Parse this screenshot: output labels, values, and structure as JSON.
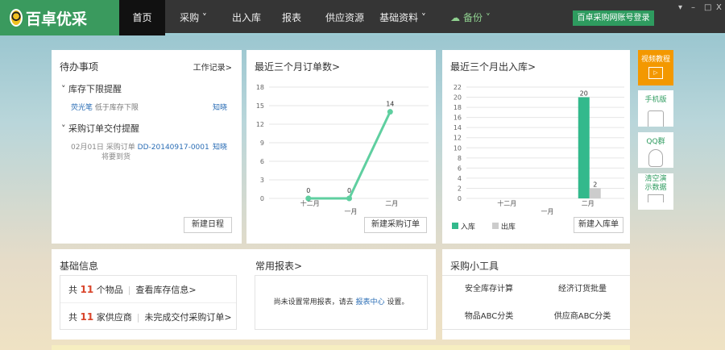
{
  "topbar": {
    "logo": "百卓优采",
    "nav": [
      {
        "label": "首页",
        "active": true
      },
      {
        "label": "采购 ˅"
      },
      {
        "label": "出入库"
      },
      {
        "label": "报表"
      },
      {
        "label": "供应资源"
      },
      {
        "label": "基础资料 ˅"
      }
    ],
    "backup": "备份 ˅",
    "login_button": "百卓采购网账号登录",
    "window_controls": [
      "▾",
      "–",
      "□",
      "X"
    ]
  },
  "todo": {
    "title": "待办事项",
    "work_log": "工作记录>",
    "sections": [
      {
        "title": "库存下限提醒",
        "item_link": "荧光笔",
        "item_text": "低于库存下限",
        "action": "知晓"
      },
      {
        "title": "采购订单交付提醒",
        "date": "02月01日",
        "item_text": "采购订单",
        "item_link": "DD-20140917-0001",
        "note": "将要到货",
        "action": "知晓"
      }
    ],
    "button": "新建日程"
  },
  "orders": {
    "title": "最近三个月订单数>",
    "button": "新建采购订单"
  },
  "stock": {
    "title": "最近三个月出入库>",
    "button": "新建入库单",
    "legend": [
      "入库",
      "出库"
    ]
  },
  "chart_data": [
    {
      "type": "line",
      "categories": [
        "十二月",
        "一月",
        "二月"
      ],
      "series": [
        {
          "values": [
            0,
            0,
            14
          ]
        }
      ],
      "ylim": [
        0,
        18
      ],
      "yticks": [
        0,
        3,
        6,
        9,
        12,
        15,
        18
      ],
      "grid": true,
      "color": "#5fcfa0"
    },
    {
      "type": "bar",
      "categories": [
        "十二月",
        "一月",
        "二月"
      ],
      "series": [
        {
          "name": "入库",
          "values": [
            0,
            0,
            20
          ],
          "color": "#33b98c"
        },
        {
          "name": "出库",
          "values": [
            0,
            0,
            2
          ],
          "color": "#cccccc"
        }
      ],
      "ylim": [
        0,
        22
      ],
      "yticks": [
        0,
        2,
        4,
        6,
        8,
        10,
        12,
        14,
        16,
        18,
        20,
        22
      ],
      "grid": true,
      "legend": "bottom-left"
    }
  ],
  "side": [
    {
      "label": "视频教程",
      "icon": "video-icon"
    },
    {
      "label": "手机版",
      "icon": "phone-icon"
    },
    {
      "label": "QQ群",
      "icon": "qq-icon"
    },
    {
      "label": "清空演示数据",
      "icon": "broom-icon"
    }
  ],
  "basic": {
    "title": "基础信息",
    "rows": [
      {
        "prefix": "共",
        "count": "11",
        "suffix": "个物品",
        "link": "查看库存信息>"
      },
      {
        "prefix": "共",
        "count": "11",
        "suffix": "家供应商",
        "link": "未完成交付采购订单>"
      }
    ]
  },
  "reports": {
    "title": "常用报表>",
    "msg_before": "尚未设置常用报表，请去",
    "msg_link": "报表中心",
    "msg_after": "设置。"
  },
  "tools": {
    "title": "采购小工具",
    "items": [
      "安全库存计算",
      "经济订货批量",
      "物品ABC分类",
      "供应商ABC分类"
    ]
  },
  "colors": {
    "brand": "#3a9a5e",
    "accent": "#f39800",
    "link": "#2a6db5"
  }
}
